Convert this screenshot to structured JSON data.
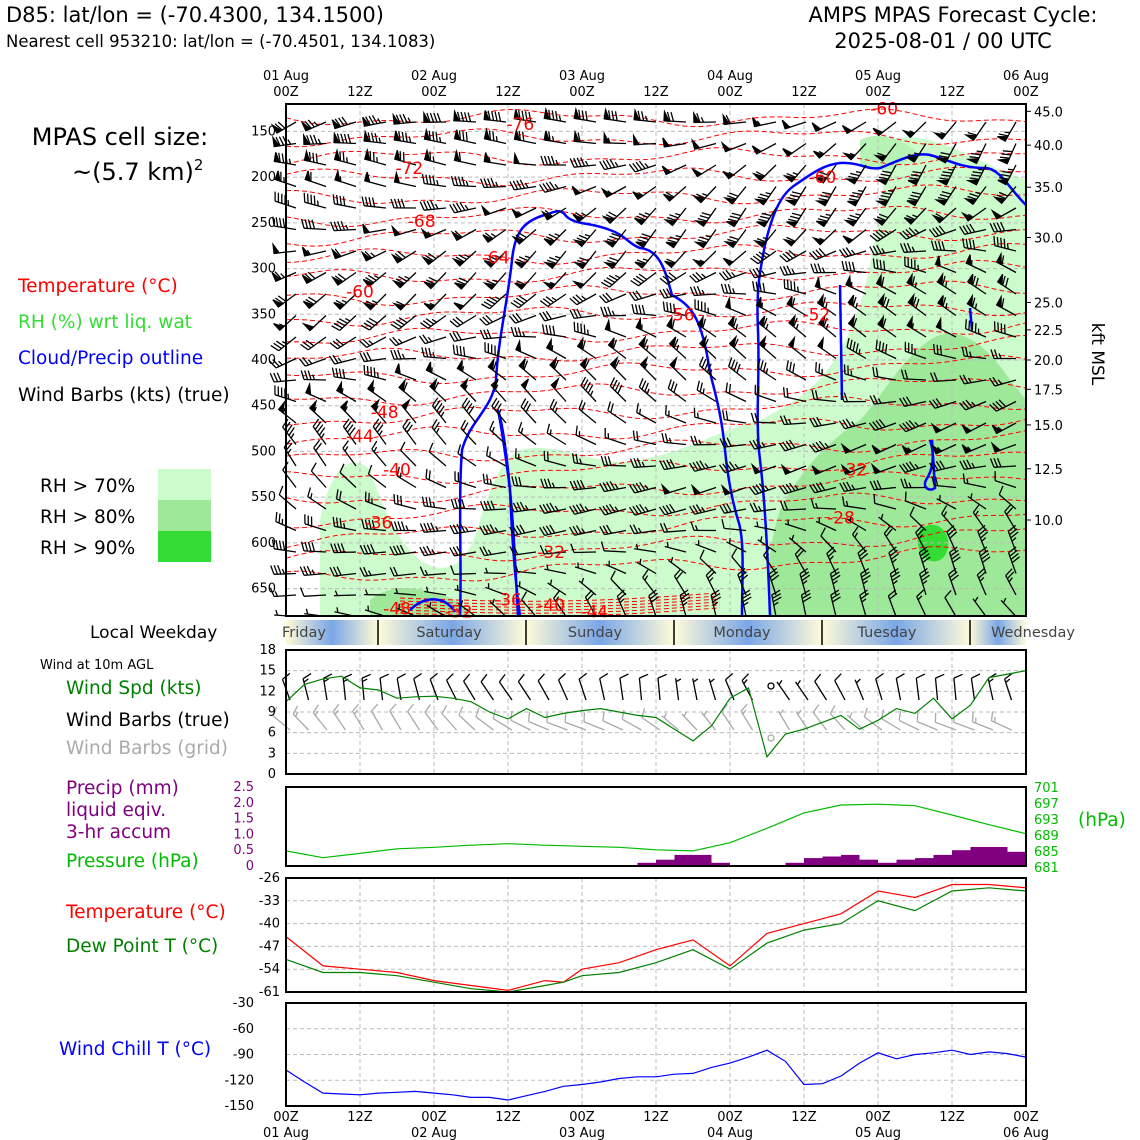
{
  "header": {
    "station_line": "D85: lat/lon = (-70.4300, 134.1500)",
    "nearest_line": "Nearest cell 953210: lat/lon = (-70.4501, 134.1083)",
    "cycle_title": "AMPS MPAS Forecast Cycle:",
    "cycle_time": "2025-08-01 / 00 UTC"
  },
  "cell_size": {
    "line1": "MPAS cell size:",
    "line2": "~(5.7 km)",
    "sup": "2"
  },
  "top_legend": {
    "temperature": "Temperature (°C)",
    "rh": "RH (%) wrt liq. wat",
    "cloud": "Cloud/Precip outline",
    "wind": "Wind Barbs (kts) (true)"
  },
  "rh_legend": [
    {
      "label": "RH > 70%",
      "color": "#ccfbcc"
    },
    {
      "label": "RH > 80%",
      "color": "#9ee89a"
    },
    {
      "label": "RH > 90%",
      "color": "#33dd33"
    }
  ],
  "time_axis": {
    "dates": [
      "01 Aug",
      "02 Aug",
      "03 Aug",
      "04 Aug",
      "05 Aug",
      "06 Aug"
    ],
    "hours": [
      "00Z",
      "12Z",
      "00Z",
      "12Z",
      "00Z",
      "12Z",
      "00Z",
      "12Z",
      "00Z",
      "12Z",
      "00Z"
    ]
  },
  "weekday": {
    "label": "Local Weekday",
    "days": [
      "Friday",
      "Saturday",
      "Sunday",
      "Monday",
      "Tuesday",
      "Wednesday"
    ]
  },
  "colors": {
    "temperature": "#ff0000",
    "dewpoint": "#008000",
    "wind_speed": "#008000",
    "pressure": "#00bb00",
    "precip": "#800080",
    "cloud": "#0000ff",
    "wind_chill": "#0000ff",
    "grid_barbs": "#aaaaaa"
  },
  "chart_data": [
    {
      "type": "heatmap",
      "title": "Vertical cross-section",
      "pressure_ticks": [
        150,
        200,
        250,
        300,
        350,
        400,
        450,
        500,
        550,
        600,
        650
      ],
      "height_ticks": [
        "45.0",
        "40.0",
        "35.0",
        "30.0",
        "25.0",
        "22.5",
        "20.0",
        "17.5",
        "15.0",
        "12.5",
        "10.0"
      ],
      "height_label": "kft MSL",
      "ylim": [
        120,
        680
      ],
      "temperature_labels": [
        {
          "text": "-76",
          "t": 38,
          "p": 142
        },
        {
          "text": "-72",
          "t": 20,
          "p": 190
        },
        {
          "text": "-68",
          "t": 22,
          "p": 248
        },
        {
          "text": "-64",
          "t": 34,
          "p": 288
        },
        {
          "text": "-60",
          "t": 12,
          "p": 325
        },
        {
          "text": "-56",
          "t": 64,
          "p": 350
        },
        {
          "text": "-52",
          "t": 86,
          "p": 350
        },
        {
          "text": "-60",
          "t": 87,
          "p": 200
        },
        {
          "text": "-60",
          "t": 97,
          "p": 125
        },
        {
          "text": "-48",
          "t": 16,
          "p": 457
        },
        {
          "text": "-44",
          "t": 12,
          "p": 483
        },
        {
          "text": "-40",
          "t": 18,
          "p": 520
        },
        {
          "text": "-36",
          "t": 15,
          "p": 578
        },
        {
          "text": "-32",
          "t": 43,
          "p": 610
        },
        {
          "text": "-32",
          "t": 92,
          "p": 520
        },
        {
          "text": "-28",
          "t": 90,
          "p": 572
        },
        {
          "text": "-48",
          "t": 18,
          "p": 672
        },
        {
          "text": "-52",
          "t": 28,
          "p": 675
        },
        {
          "text": "-36",
          "t": 36,
          "p": 662
        },
        {
          "text": "-40",
          "t": 43,
          "p": 668
        },
        {
          "text": "-44",
          "t": 50,
          "p": 675
        }
      ]
    },
    {
      "type": "line",
      "title": "Wind at 10m AGL",
      "legend": [
        "Wind Spd (kts)",
        "Wind Barbs (true)",
        "Wind Barbs (grid)"
      ],
      "y_ticks": [
        0,
        3,
        6,
        9,
        12,
        15,
        18
      ],
      "ylim": [
        0,
        18
      ],
      "x_hours": [
        0,
        3,
        6,
        9,
        12,
        15,
        18,
        21,
        24,
        27,
        30,
        33,
        36,
        39,
        42,
        45,
        48,
        51,
        54,
        57,
        60,
        63,
        66,
        69,
        72,
        75,
        78,
        81,
        84,
        87,
        90,
        93,
        96,
        99,
        102,
        105,
        108,
        111,
        114,
        117,
        120
      ],
      "wind_speed": [
        10.5,
        13,
        13.8,
        14.2,
        12.5,
        12.2,
        11,
        11.2,
        11.3,
        11,
        10.5,
        9,
        8,
        9.5,
        8.2,
        8.8,
        9.2,
        9.5,
        9,
        8.5,
        8.2,
        6.5,
        4.8,
        7,
        11,
        12.5,
        2.5,
        5.8,
        6.5,
        7.5,
        8.5,
        6.5,
        7.8,
        9.5,
        8.8,
        11,
        8,
        10,
        14,
        14.5,
        15
      ]
    },
    {
      "type": "line",
      "legend": [
        "Precip (mm)",
        "liquid eqiv.",
        "3-hr accum",
        "Pressure (hPa)"
      ],
      "precip_ticks": [
        "2.5",
        "2.0",
        "1.5",
        "1.0",
        "0.5",
        "0"
      ],
      "precip_lim": [
        0,
        2.5
      ],
      "pressure_ticks": [
        "701",
        "697",
        "693",
        "689",
        "685",
        "681"
      ],
      "pressure_lim": [
        680,
        702
      ],
      "pressure_unit": "(hPa)",
      "x_hours": [
        0,
        6,
        12,
        18,
        24,
        30,
        36,
        42,
        48,
        54,
        60,
        66,
        72,
        78,
        84,
        90,
        96,
        102,
        108,
        114,
        120
      ],
      "pressure": [
        684.2,
        682.3,
        683.5,
        684.8,
        685.2,
        685.8,
        686.2,
        685.8,
        685.5,
        685.2,
        684.5,
        684.2,
        686.5,
        690.5,
        694.8,
        697,
        697.2,
        696.8,
        694.2,
        691.5,
        689
      ],
      "precip_bars": [
        {
          "h0": 57,
          "h1": 60,
          "v": 0.1
        },
        {
          "h0": 60,
          "h1": 63,
          "v": 0.2
        },
        {
          "h0": 63,
          "h1": 66,
          "v": 0.35
        },
        {
          "h0": 66,
          "h1": 69,
          "v": 0.35
        },
        {
          "h0": 69,
          "h1": 72,
          "v": 0.1
        },
        {
          "h0": 81,
          "h1": 84,
          "v": 0.1
        },
        {
          "h0": 84,
          "h1": 87,
          "v": 0.25
        },
        {
          "h0": 87,
          "h1": 90,
          "v": 0.3
        },
        {
          "h0": 90,
          "h1": 93,
          "v": 0.35
        },
        {
          "h0": 93,
          "h1": 96,
          "v": 0.2
        },
        {
          "h0": 96,
          "h1": 99,
          "v": 0.1
        },
        {
          "h0": 99,
          "h1": 102,
          "v": 0.2
        },
        {
          "h0": 102,
          "h1": 105,
          "v": 0.25
        },
        {
          "h0": 105,
          "h1": 108,
          "v": 0.35
        },
        {
          "h0": 108,
          "h1": 111,
          "v": 0.5
        },
        {
          "h0": 111,
          "h1": 114,
          "v": 0.6
        },
        {
          "h0": 114,
          "h1": 117,
          "v": 0.6
        },
        {
          "h0": 117,
          "h1": 120,
          "v": 0.45
        }
      ]
    },
    {
      "type": "line",
      "legend": [
        "Temperature (°C)",
        "Dew Point T (°C)"
      ],
      "y_ticks": [
        "-26",
        "-33",
        "-40",
        "-47",
        "-54",
        "-61"
      ],
      "ylim": [
        -61,
        -26
      ],
      "x_hours": [
        0,
        6,
        12,
        18,
        24,
        30,
        36,
        42,
        45,
        48,
        54,
        60,
        66,
        72,
        78,
        84,
        90,
        96,
        102,
        108,
        114,
        120
      ],
      "temperature": [
        -44,
        -53,
        -54,
        -55,
        -57.5,
        -59,
        -60.5,
        -57.5,
        -58,
        -54,
        -52,
        -48,
        -45,
        -53,
        -43,
        -40,
        -37,
        -30,
        -32,
        -28,
        -28,
        -29
      ],
      "dewpoint": [
        -51,
        -55,
        -55,
        -56,
        -58,
        -60,
        -61,
        -59,
        -58,
        -56,
        -55,
        -52,
        -48,
        -54,
        -46,
        -42,
        -40,
        -33,
        -36,
        -30,
        -29,
        -30
      ]
    },
    {
      "type": "line",
      "legend": [
        "Wind Chill T (°C)"
      ],
      "y_ticks": [
        "-30",
        "-60",
        "-90",
        "-120",
        "-150"
      ],
      "ylim": [
        -150,
        -30
      ],
      "x_hours": [
        0,
        3,
        6,
        9,
        12,
        15,
        18,
        21,
        24,
        27,
        30,
        33,
        36,
        39,
        42,
        45,
        48,
        51,
        54,
        57,
        60,
        63,
        66,
        69,
        72,
        75,
        78,
        81,
        84,
        87,
        90,
        93,
        96,
        99,
        102,
        105,
        108,
        111,
        114,
        117,
        120
      ],
      "wind_chill": [
        -108,
        -122,
        -135,
        -136,
        -137,
        -135,
        -134,
        -133,
        -135,
        -137,
        -140,
        -140,
        -143,
        -138,
        -133,
        -127,
        -125,
        -122,
        -118,
        -116,
        -116,
        -113,
        -112,
        -105,
        -100,
        -93,
        -85,
        -98,
        -125,
        -124,
        -115,
        -100,
        -88,
        -95,
        -90,
        -88,
        -85,
        -90,
        -87,
        -89,
        -93
      ]
    }
  ]
}
